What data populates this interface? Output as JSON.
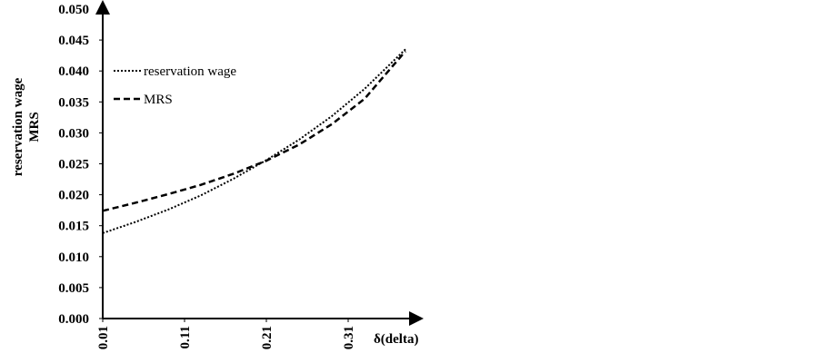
{
  "chart_data": {
    "type": "line",
    "y_label_lines": [
      "reservation wage",
      "MRS"
    ],
    "x_label": "δ(delta)",
    "x": [
      0.01,
      0.05,
      0.09,
      0.13,
      0.17,
      0.21,
      0.25,
      0.29,
      0.33,
      0.38
    ],
    "series": [
      {
        "name": "reservation wage",
        "color": "#000000",
        "style": "dotted",
        "values": [
          0.0138,
          0.0156,
          0.0176,
          0.0199,
          0.0226,
          0.0256,
          0.0289,
          0.0327,
          0.0371,
          0.0435
        ]
      },
      {
        "name": "MRS",
        "color": "#000000",
        "style": "dashed",
        "values": [
          0.0174,
          0.0187,
          0.0201,
          0.0216,
          0.0234,
          0.0255,
          0.0281,
          0.0314,
          0.0355,
          0.0432
        ]
      }
    ],
    "xlim": [
      0.01,
      0.39
    ],
    "xticks": [
      0.01,
      0.11,
      0.21,
      0.31
    ],
    "ylim": [
      0,
      0.05
    ],
    "yticks": [
      {
        "value": 0,
        "label": "0.000"
      },
      {
        "value": 0.005,
        "label": "0.005"
      },
      {
        "value": 0.01,
        "label": "0.010"
      },
      {
        "value": 0.015,
        "label": "0.015"
      },
      {
        "value": 0.02,
        "label": "0.020"
      },
      {
        "value": 0.025,
        "label": "0.025"
      },
      {
        "value": 0.03,
        "label": "0.030"
      },
      {
        "value": 0.035,
        "label": "0.035"
      },
      {
        "value": 0.04,
        "label": "0.040"
      },
      {
        "value": 0.045,
        "label": "0.045"
      },
      {
        "value": 0.05,
        "label": "0.050"
      }
    ],
    "grid": false,
    "legend": "top-left"
  }
}
